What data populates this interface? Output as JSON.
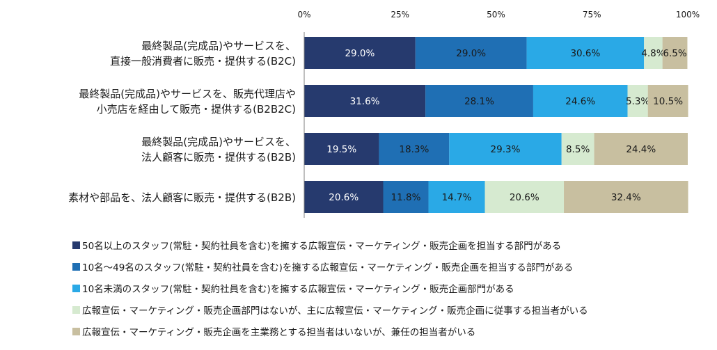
{
  "chart_data": {
    "type": "bar",
    "orientation": "horizontal",
    "stacked": true,
    "xlim": [
      0,
      100
    ],
    "x_ticks": [
      "0%",
      "25%",
      "50%",
      "75%",
      "100%"
    ],
    "x_tick_values": [
      0,
      25,
      50,
      75,
      100
    ],
    "grid": false,
    "legend_position": "bottom",
    "categories": [
      [
        "最終製品(完成品)やサービスを、",
        "直接一般消費者に販売・提供する(B2C)"
      ],
      [
        "最終製品(完成品)やサービスを、販売代理店や",
        "小売店を経由して販売・提供する(B2B2C)"
      ],
      [
        "最終製品(完成品)やサービスを、",
        "法人顧客に販売・提供する(B2B)"
      ],
      [
        "素材や部品を、法人顧客に販売・提供する(B2B)"
      ]
    ],
    "series": [
      {
        "name": "50名以上のスタッフ(常駐・契約社員を含む)を擁する広報宣伝・マーケティング・販売企画を担当する部門がある",
        "values": [
          29.0,
          31.6,
          19.5,
          20.6
        ],
        "labels": [
          "29.0%",
          "31.6%",
          "19.5%",
          "20.6%"
        ],
        "color": "#263a6e",
        "label_color": "#ffffff"
      },
      {
        "name": "10名～49名のスタッフ(常駐・契約社員を含む)を擁する広報宣伝・マーケティング・販売企画を担当する部門がある",
        "values": [
          29.0,
          28.1,
          18.3,
          11.8
        ],
        "labels": [
          "29.0%",
          "28.1%",
          "18.3%",
          "11.8%"
        ],
        "color": "#1f6fb4",
        "label_color": "#1a1a1a"
      },
      {
        "name": "10名未満のスタッフ(常駐・契約社員を含む)を擁する広報宣伝・マーケティング・販売企画部門がある",
        "values": [
          30.6,
          24.6,
          29.3,
          14.7
        ],
        "labels": [
          "30.6%",
          "24.6%",
          "29.3%",
          "14.7%"
        ],
        "color": "#2aa9e6",
        "label_color": "#1a1a1a"
      },
      {
        "name": "広報宣伝・マーケティング・販売企画部門はないが、主に広報宣伝・マーケティング・販売企画に従事する担当者がいる",
        "values": [
          4.8,
          5.3,
          8.5,
          20.6
        ],
        "labels": [
          "4.8%",
          "5.3%",
          "8.5%",
          "20.6%"
        ],
        "color": "#d6ead0",
        "label_color": "#1a1a1a"
      },
      {
        "name": "広報宣伝・マーケティング・販売企画を主業務とする担当者はいないが、兼任の担当者がいる",
        "values": [
          6.5,
          10.5,
          24.4,
          32.4
        ],
        "labels": [
          "6.5%",
          "10.5%",
          "24.4%",
          "32.4%"
        ],
        "color": "#c8bfa0",
        "label_color": "#1a1a1a"
      }
    ]
  }
}
